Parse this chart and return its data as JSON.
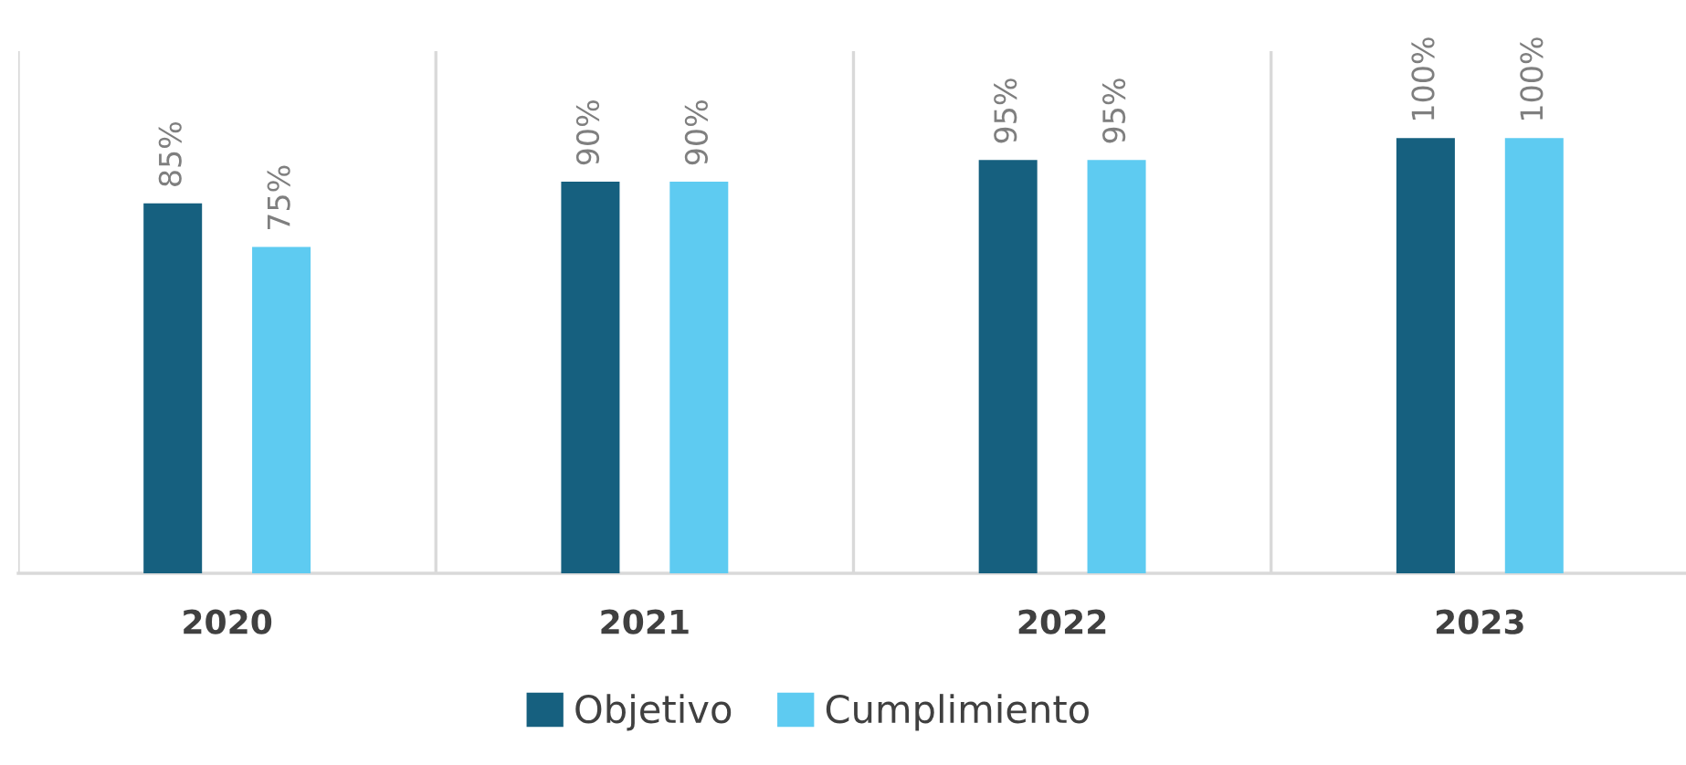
{
  "chart_data": {
    "type": "bar",
    "categories": [
      "2020",
      "2021",
      "2022",
      "2023"
    ],
    "series": [
      {
        "name": "Objetivo",
        "color": "#16607f",
        "values": [
          85,
          90,
          95,
          100
        ],
        "value_labels": [
          "85%",
          "90%",
          "95%",
          "100%"
        ]
      },
      {
        "name": "Cumplimiento",
        "color": "#5ecbf1",
        "values": [
          75,
          90,
          95,
          100
        ],
        "value_labels": [
          "75%",
          "90%",
          "95%",
          "100%"
        ]
      }
    ],
    "grid": "x",
    "legend": "bottom"
  }
}
